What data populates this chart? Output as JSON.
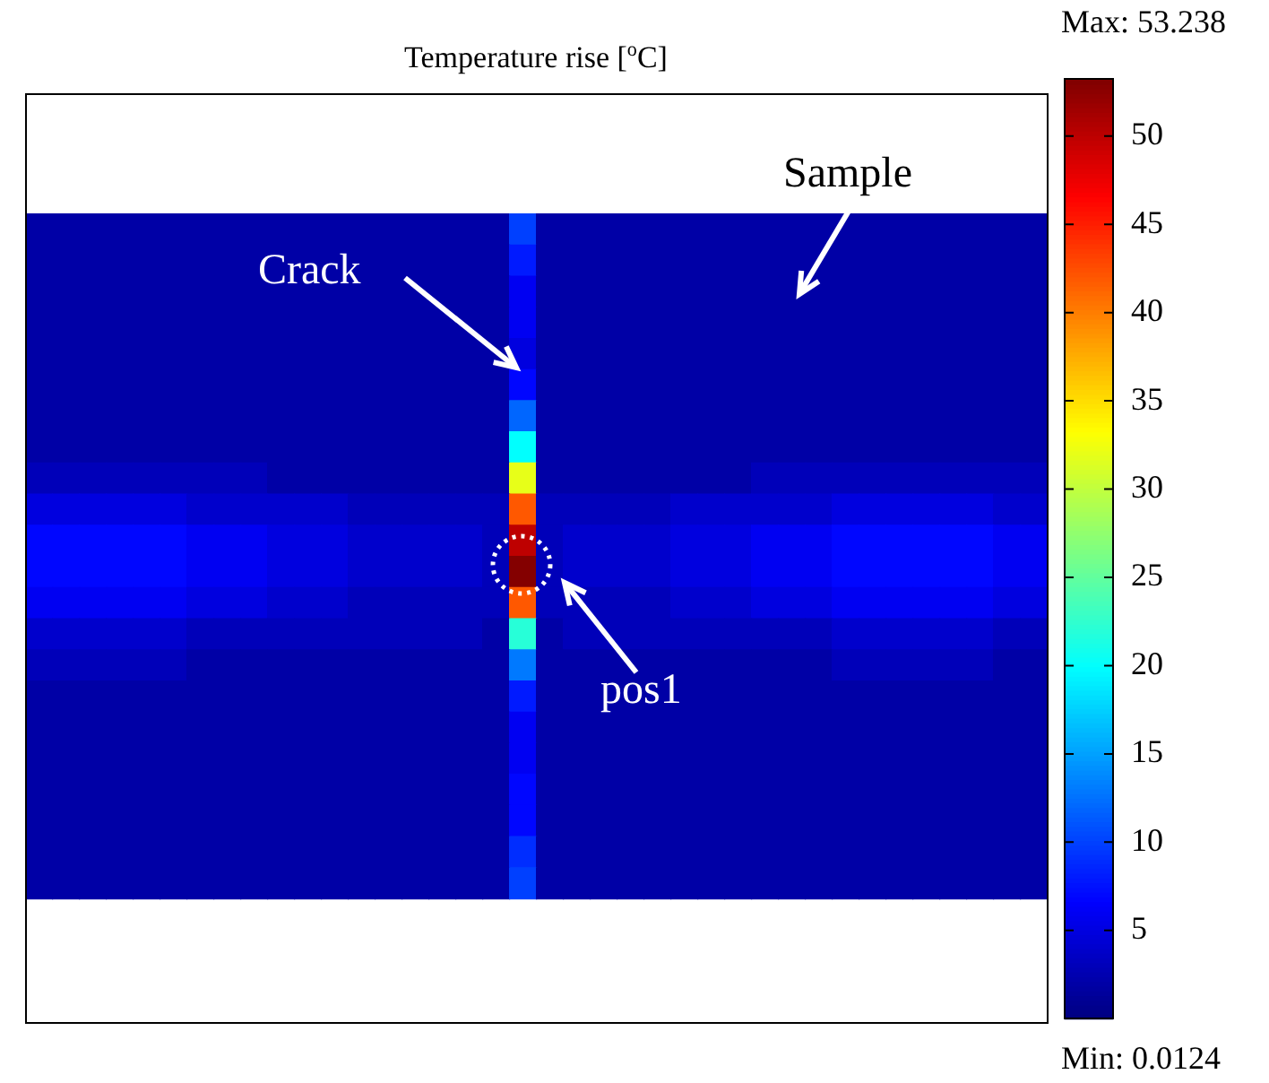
{
  "chart_data": {
    "type": "heatmap",
    "title": "Temperature rise [$^{o}$C]",
    "categories": [
      null,
      null,
      null,
      null,
      null,
      null,
      null,
      null,
      null,
      null,
      null,
      null,
      null,
      null,
      null,
      null,
      null,
      null,
      null,
      null,
      null,
      null,
      null,
      null,
      null,
      null,
      null,
      null,
      null,
      null,
      null,
      null,
      null,
      null,
      null,
      null,
      null,
      null
    ],
    "y_categories": [
      null,
      null,
      null,
      null,
      null,
      null,
      null,
      null,
      null,
      null,
      null,
      null,
      null,
      null,
      null,
      null,
      null,
      null,
      null,
      null,
      null,
      null
    ],
    "cells": [
      [
        2,
        2,
        2,
        2,
        2,
        2,
        2,
        2,
        2,
        2,
        2,
        2,
        2,
        2,
        2,
        2,
        2,
        2,
        10,
        2,
        2,
        2,
        2,
        2,
        2,
        2,
        2,
        2,
        2,
        2,
        2,
        2,
        2,
        2,
        2,
        2,
        2,
        2
      ],
      [
        2,
        2,
        2,
        2,
        2,
        2,
        2,
        2,
        2,
        2,
        2,
        2,
        2,
        2,
        2,
        2,
        2,
        2,
        8,
        2,
        2,
        2,
        2,
        2,
        2,
        2,
        2,
        2,
        2,
        2,
        2,
        2,
        2,
        2,
        2,
        2,
        2,
        2
      ],
      [
        2,
        2,
        2,
        2,
        2,
        2,
        2,
        2,
        2,
        2,
        2,
        2,
        2,
        2,
        2,
        2,
        2,
        2,
        6,
        2,
        2,
        2,
        2,
        2,
        2,
        2,
        2,
        2,
        2,
        2,
        2,
        2,
        2,
        2,
        2,
        2,
        2,
        2
      ],
      [
        2,
        2,
        2,
        2,
        2,
        2,
        2,
        2,
        2,
        2,
        2,
        2,
        2,
        2,
        2,
        2,
        2,
        2,
        6,
        2,
        2,
        2,
        2,
        2,
        2,
        2,
        2,
        2,
        2,
        2,
        2,
        2,
        2,
        2,
        2,
        2,
        2,
        2
      ],
      [
        2,
        2,
        2,
        2,
        2,
        2,
        2,
        2,
        2,
        2,
        2,
        2,
        2,
        2,
        2,
        2,
        2,
        2,
        5,
        2,
        2,
        2,
        2,
        2,
        2,
        2,
        2,
        2,
        2,
        2,
        2,
        2,
        2,
        2,
        2,
        2,
        2,
        2
      ],
      [
        2,
        2,
        2,
        2,
        2,
        2,
        2,
        2,
        2,
        2,
        2,
        2,
        2,
        2,
        2,
        2,
        2,
        2,
        7,
        2,
        2,
        2,
        2,
        2,
        2,
        2,
        2,
        2,
        2,
        2,
        2,
        2,
        2,
        2,
        2,
        2,
        2,
        2
      ],
      [
        2,
        2,
        2,
        2,
        2,
        2,
        2,
        2,
        2,
        2,
        2,
        2,
        2,
        2,
        2,
        2,
        2,
        2,
        12,
        2,
        2,
        2,
        2,
        2,
        2,
        2,
        2,
        2,
        2,
        2,
        2,
        2,
        2,
        2,
        2,
        2,
        2,
        2
      ],
      [
        2,
        2,
        2,
        2,
        2,
        2,
        2,
        2,
        2,
        2,
        2,
        2,
        2,
        2,
        2,
        2,
        2,
        2,
        20,
        2,
        2,
        2,
        2,
        2,
        2,
        2,
        2,
        2,
        2,
        2,
        2,
        2,
        2,
        2,
        2,
        2,
        2,
        2
      ],
      [
        3,
        3,
        3,
        3,
        3,
        3,
        3,
        3,
        3,
        2,
        2,
        2,
        2,
        2,
        2,
        2,
        2,
        2,
        32,
        2,
        2,
        2,
        2,
        2,
        2,
        2,
        2,
        3,
        3,
        3,
        3,
        3,
        3,
        3,
        3,
        3,
        3,
        3
      ],
      [
        5,
        5,
        5,
        5,
        5,
        5,
        4,
        4,
        4,
        4,
        4,
        4,
        3,
        3,
        3,
        3,
        3,
        3,
        42,
        3,
        3,
        3,
        3,
        3,
        4,
        4,
        4,
        4,
        4,
        4,
        5,
        5,
        5,
        5,
        5,
        5,
        4,
        4
      ],
      [
        7,
        7,
        7,
        7,
        7,
        7,
        6,
        6,
        6,
        5,
        5,
        5,
        4,
        4,
        4,
        4,
        4,
        3,
        50,
        3,
        4,
        4,
        4,
        4,
        5,
        5,
        5,
        6,
        6,
        6,
        7,
        7,
        7,
        7,
        7,
        7,
        6,
        6
      ],
      [
        7,
        7,
        7,
        7,
        7,
        7,
        6,
        6,
        6,
        5,
        5,
        5,
        4,
        4,
        4,
        4,
        4,
        3,
        53,
        3,
        4,
        4,
        4,
        4,
        5,
        5,
        5,
        6,
        6,
        6,
        7,
        7,
        7,
        7,
        7,
        7,
        6,
        6
      ],
      [
        6,
        6,
        6,
        6,
        6,
        6,
        5,
        5,
        5,
        4,
        4,
        4,
        3,
        3,
        3,
        3,
        3,
        3,
        42,
        3,
        3,
        3,
        3,
        3,
        4,
        4,
        4,
        5,
        5,
        5,
        6,
        6,
        6,
        6,
        6,
        6,
        5,
        5
      ],
      [
        4,
        4,
        4,
        4,
        4,
        4,
        3,
        3,
        3,
        3,
        3,
        3,
        3,
        3,
        3,
        3,
        3,
        2,
        22,
        2,
        3,
        3,
        3,
        3,
        3,
        3,
        3,
        3,
        3,
        3,
        4,
        4,
        4,
        4,
        4,
        4,
        3,
        3
      ],
      [
        3,
        3,
        3,
        3,
        3,
        3,
        2,
        2,
        2,
        2,
        2,
        2,
        2,
        2,
        2,
        2,
        2,
        2,
        13,
        2,
        2,
        2,
        2,
        2,
        2,
        2,
        2,
        2,
        2,
        2,
        3,
        3,
        3,
        3,
        3,
        3,
        2,
        2
      ],
      [
        2,
        2,
        2,
        2,
        2,
        2,
        2,
        2,
        2,
        2,
        2,
        2,
        2,
        2,
        2,
        2,
        2,
        2,
        8,
        2,
        2,
        2,
        2,
        2,
        2,
        2,
        2,
        2,
        2,
        2,
        2,
        2,
        2,
        2,
        2,
        2,
        2,
        2
      ],
      [
        2,
        2,
        2,
        2,
        2,
        2,
        2,
        2,
        2,
        2,
        2,
        2,
        2,
        2,
        2,
        2,
        2,
        2,
        6,
        2,
        2,
        2,
        2,
        2,
        2,
        2,
        2,
        2,
        2,
        2,
        2,
        2,
        2,
        2,
        2,
        2,
        2,
        2
      ],
      [
        2,
        2,
        2,
        2,
        2,
        2,
        2,
        2,
        2,
        2,
        2,
        2,
        2,
        2,
        2,
        2,
        2,
        2,
        6,
        2,
        2,
        2,
        2,
        2,
        2,
        2,
        2,
        2,
        2,
        2,
        2,
        2,
        2,
        2,
        2,
        2,
        2,
        2
      ],
      [
        2,
        2,
        2,
        2,
        2,
        2,
        2,
        2,
        2,
        2,
        2,
        2,
        2,
        2,
        2,
        2,
        2,
        2,
        7,
        2,
        2,
        2,
        2,
        2,
        2,
        2,
        2,
        2,
        2,
        2,
        2,
        2,
        2,
        2,
        2,
        2,
        2,
        2
      ],
      [
        2,
        2,
        2,
        2,
        2,
        2,
        2,
        2,
        2,
        2,
        2,
        2,
        2,
        2,
        2,
        2,
        2,
        2,
        7,
        2,
        2,
        2,
        2,
        2,
        2,
        2,
        2,
        2,
        2,
        2,
        2,
        2,
        2,
        2,
        2,
        2,
        2,
        2
      ],
      [
        2,
        2,
        2,
        2,
        2,
        2,
        2,
        2,
        2,
        2,
        2,
        2,
        2,
        2,
        2,
        2,
        2,
        2,
        9,
        2,
        2,
        2,
        2,
        2,
        2,
        2,
        2,
        2,
        2,
        2,
        2,
        2,
        2,
        2,
        2,
        2,
        2,
        2
      ],
      [
        2,
        2,
        2,
        2,
        2,
        2,
        2,
        2,
        2,
        2,
        2,
        2,
        2,
        2,
        2,
        2,
        2,
        2,
        10,
        2,
        2,
        2,
        2,
        2,
        2,
        2,
        2,
        2,
        2,
        2,
        2,
        2,
        2,
        2,
        2,
        2,
        2,
        2
      ]
    ],
    "clim": [
      0.0124,
      53.238
    ],
    "cticks": [
      5,
      10,
      15,
      20,
      25,
      30,
      35,
      40,
      45,
      50
    ],
    "annotations": [
      "Crack",
      "Sample",
      "pos1",
      "Max: 53.238",
      "Min: 0.0124"
    ]
  }
}
